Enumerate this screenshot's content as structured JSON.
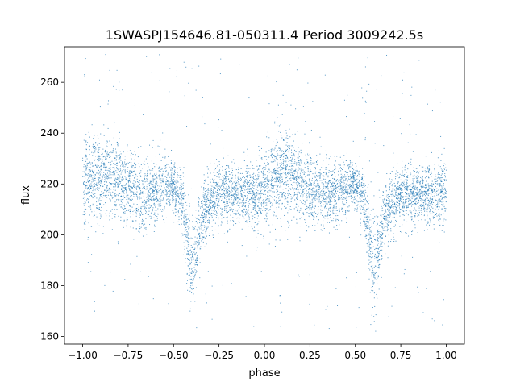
{
  "chart_data": {
    "type": "scatter",
    "title": "1SWASPJ154646.81-050311.4 Period 3009242.5s",
    "xlabel": "phase",
    "ylabel": "flux",
    "xlim": [
      -1.1,
      1.1
    ],
    "ylim": [
      157,
      274
    ],
    "x_ticks": [
      -1.0,
      -0.75,
      -0.5,
      -0.25,
      0.0,
      0.25,
      0.5,
      0.75,
      1.0
    ],
    "x_tick_labels": [
      "−1.00",
      "−0.75",
      "−0.50",
      "−0.25",
      "0.00",
      "0.25",
      "0.50",
      "0.75",
      "1.00"
    ],
    "y_ticks": [
      160,
      180,
      200,
      220,
      240,
      260
    ],
    "y_tick_labels": [
      "160",
      "180",
      "200",
      "220",
      "240",
      "260"
    ],
    "grid": false,
    "legend": "none",
    "marker_color": "#1f77b4",
    "light_curve_profile": {
      "phase": [
        0.0,
        0.05,
        0.1,
        0.15,
        0.2,
        0.25,
        0.3,
        0.35,
        0.4,
        0.45,
        0.5,
        0.55,
        0.58,
        0.6,
        0.62,
        0.65,
        0.7,
        0.75,
        0.8,
        0.85,
        0.9,
        0.95,
        1.0
      ],
      "flux_median": [
        218,
        222,
        224,
        223,
        221,
        219,
        217,
        216,
        217,
        219,
        220,
        212,
        198,
        185,
        192,
        205,
        213,
        216,
        217,
        216,
        215,
        216,
        218
      ],
      "flux_spread": [
        14,
        14,
        15,
        14,
        13,
        12,
        12,
        11,
        10,
        9,
        8,
        10,
        14,
        18,
        14,
        11,
        10,
        10,
        10,
        9,
        10,
        11,
        14
      ]
    },
    "outlier_flux_range": [
      163,
      273
    ]
  }
}
